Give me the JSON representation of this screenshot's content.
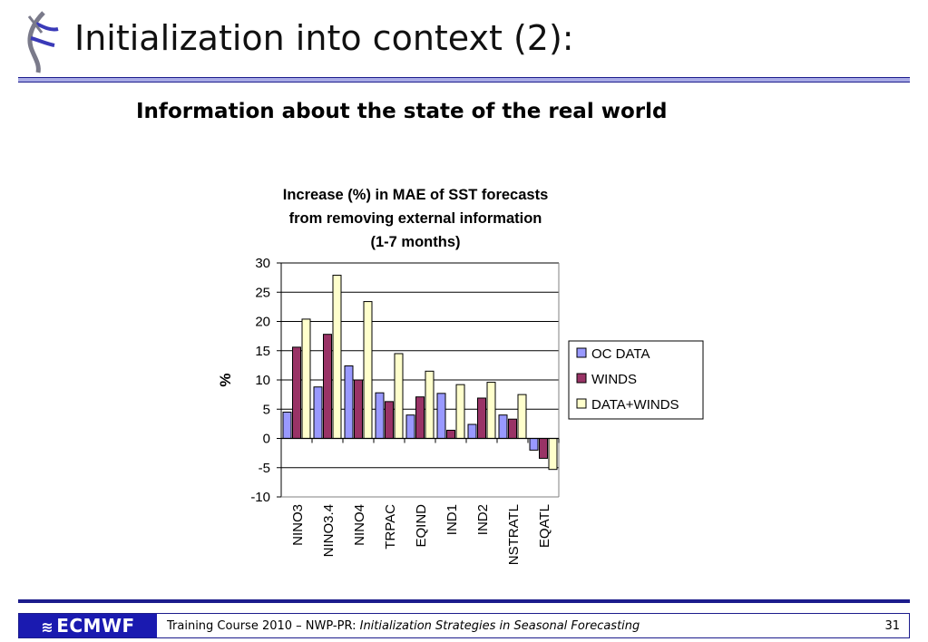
{
  "slide": {
    "title": "Initialization into context (2):",
    "subtitle": "Information about the state of the real world"
  },
  "footer": {
    "logo_text": "ECMWF",
    "course": "Training Course 2010 – NWP-PR: ",
    "course_title": "Initialization Strategies in Seasonal Forecasting",
    "page": "31"
  },
  "colors": {
    "accent": "#1c1c8c",
    "rule_fill": "#a9abe6",
    "oc_data": "#9999ff",
    "winds": "#993366",
    "data_winds": "#ffffcc"
  },
  "chart_data": {
    "type": "bar",
    "title": [
      "Increase (%) in MAE of SST forecasts",
      "from removing external information",
      "(1-7 months)"
    ],
    "xlabel": "",
    "ylabel": "%",
    "ylim": [
      -10,
      30
    ],
    "yticks": [
      "30",
      "25",
      "20",
      "15",
      "10",
      "5",
      "0",
      "-5",
      "-10"
    ],
    "grid": true,
    "legend_position": "right",
    "categories": [
      "NINO3",
      "NINO3.4",
      "NINO4",
      "TRPAC",
      "EQIND",
      "IND1",
      "IND2",
      "NSTRATL",
      "EQATL"
    ],
    "series": [
      {
        "name": "OC DATA",
        "color": "#9999ff",
        "values": [
          4.5,
          8.8,
          12.4,
          7.8,
          4.0,
          7.7,
          2.4,
          4.0,
          -2.0
        ]
      },
      {
        "name": "WINDS",
        "color": "#993366",
        "values": [
          15.6,
          17.8,
          10.0,
          6.3,
          7.1,
          1.4,
          6.9,
          3.3,
          -3.4
        ]
      },
      {
        "name": "DATA+WINDS",
        "color": "#ffffcc",
        "values": [
          20.4,
          27.9,
          23.4,
          14.5,
          11.5,
          9.2,
          9.6,
          7.5,
          -5.3
        ]
      }
    ]
  }
}
